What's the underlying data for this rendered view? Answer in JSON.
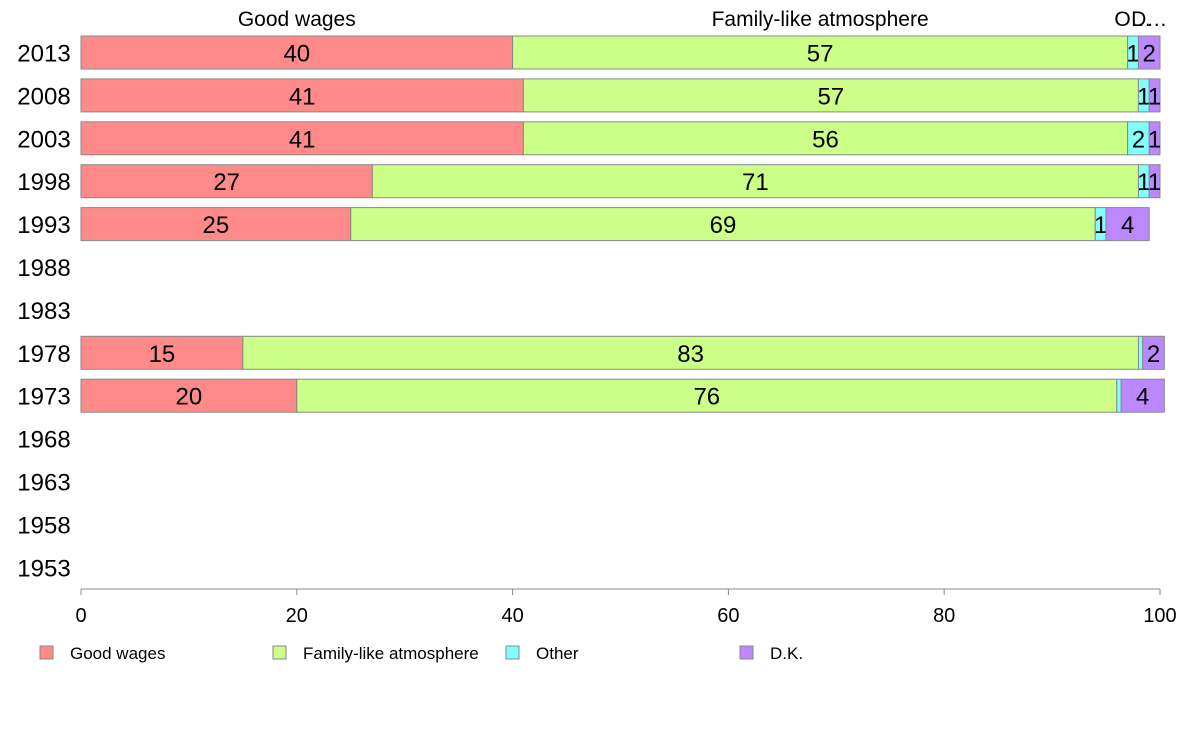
{
  "chart_data": {
    "type": "bar",
    "orientation": "horizontal",
    "stacked": true,
    "categories": [
      "2013",
      "2008",
      "2003",
      "1998",
      "1993",
      "1988",
      "1983",
      "1978",
      "1973",
      "1968",
      "1963",
      "1958",
      "1953"
    ],
    "series": [
      {
        "name": "Good wages",
        "color": "#ff8a8a",
        "values": [
          40,
          41,
          41,
          27,
          25,
          null,
          null,
          15,
          20,
          null,
          null,
          null,
          null
        ]
      },
      {
        "name": "Family-like atmosphere",
        "color": "#ccff88",
        "values": [
          57,
          57,
          56,
          71,
          69,
          null,
          null,
          83,
          76,
          null,
          null,
          null,
          null
        ]
      },
      {
        "name": "Other",
        "color": "#80ffff",
        "values": [
          1,
          1,
          2,
          1,
          1,
          null,
          null,
          0.4,
          0.4,
          null,
          null,
          null,
          null
        ]
      },
      {
        "name": "D.K.",
        "color": "#bb88ff",
        "values": [
          2,
          1,
          1,
          1,
          4,
          null,
          null,
          2,
          4,
          null,
          null,
          null,
          null
        ]
      }
    ],
    "top_labels": [
      "Good wages",
      "Family-like atmosphere",
      "O…",
      "D…"
    ],
    "xlim": [
      0,
      100
    ],
    "xticks": [
      0,
      20,
      40,
      60,
      80,
      100
    ],
    "grid": false,
    "legend_position": "bottom"
  }
}
